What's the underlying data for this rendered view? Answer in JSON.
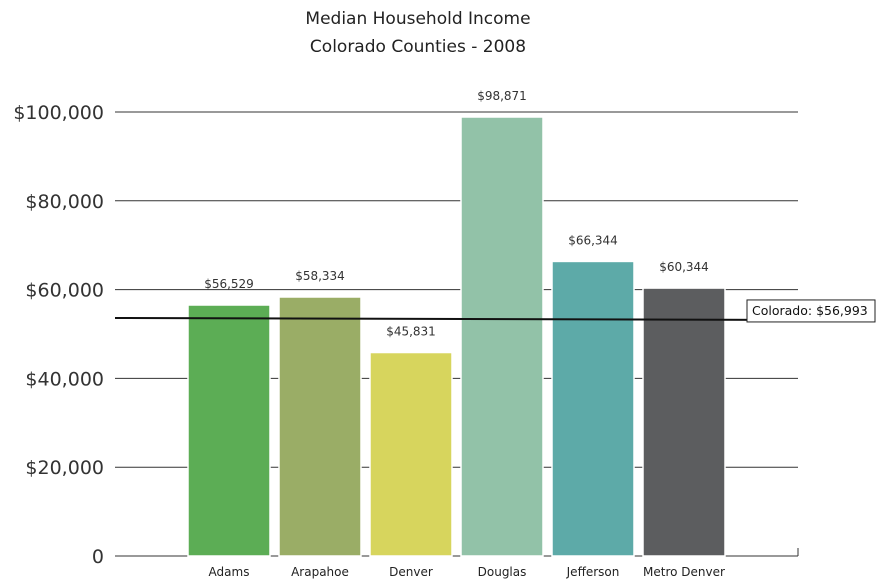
{
  "chart_data": {
    "type": "bar",
    "title": "Median Household Income",
    "subtitle": "Colorado Counties - 2008",
    "categories": [
      "Adams",
      "Arapahoe",
      "Denver",
      "Douglas",
      "Jefferson",
      "Metro Denver"
    ],
    "values": [
      56529,
      58334,
      45831,
      98871,
      66344,
      60344
    ],
    "value_labels": [
      "$56,529",
      "$58,334",
      "$45,831",
      "$98,871",
      "$66,344",
      "$60,344"
    ],
    "colors": [
      "#5cad55",
      "#9aad66",
      "#d7d55d",
      "#92c2a8",
      "#5daaa8",
      "#5c5d5f"
    ],
    "ylim": [
      0,
      100000
    ],
    "yticks": [
      0,
      20000,
      40000,
      60000,
      80000,
      100000
    ],
    "ytick_labels": [
      "0",
      "$20,000",
      "$40,000",
      "$60,000",
      "$80,000",
      "$100,000"
    ],
    "grid": true,
    "reference_line": {
      "value": 56993,
      "label": "Colorado: $56,993"
    },
    "xlabel": "",
    "ylabel": ""
  }
}
